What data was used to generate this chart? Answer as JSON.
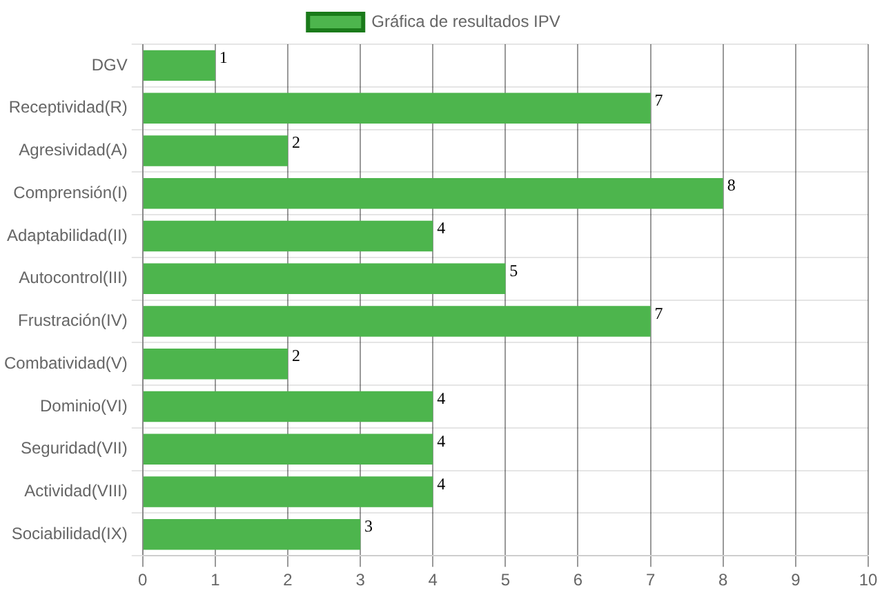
{
  "chart_data": {
    "type": "bar",
    "orientation": "horizontal",
    "categories": [
      "DGV",
      "Receptividad(R)",
      "Agresividad(A)",
      "Comprensión(I)",
      "Adaptabilidad(II)",
      "Autocontrol(III)",
      "Frustración(IV)",
      "Combatividad(V)",
      "Dominio(VI)",
      "Seguridad(VII)",
      "Actividad(VIII)",
      "Sociabilidad(IX)"
    ],
    "series": [
      {
        "name": "Gráfica de resultados IPV",
        "color": "#4db54d",
        "values": [
          1,
          7,
          2,
          8,
          4,
          5,
          7,
          2,
          4,
          4,
          4,
          3
        ]
      }
    ],
    "xlim": [
      0,
      10
    ],
    "xticks": [
      0,
      1,
      2,
      3,
      4,
      5,
      6,
      7,
      8,
      9,
      10
    ],
    "grid": true,
    "legend": "top",
    "data_labels": true
  }
}
